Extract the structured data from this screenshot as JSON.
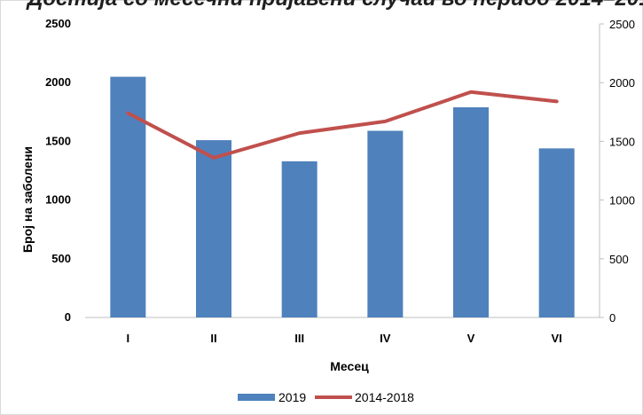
{
  "chart_data": {
    "type": "bar",
    "title": "",
    "title_visible_fragment": "...остј со ...ечи ...ра... ...ни ...и ...реди... ...о ... ...о...",
    "categories": [
      "I",
      "II",
      "III",
      "IV",
      "V",
      "VI"
    ],
    "series": [
      {
        "name": "2019",
        "type": "bar",
        "axis": "left",
        "color": "#4f81bd",
        "values": [
          2050,
          1510,
          1330,
          1590,
          1790,
          1440
        ]
      },
      {
        "name": "2014-2018",
        "type": "line",
        "axis": "right",
        "color": "#c0504d",
        "values": [
          1740,
          1360,
          1570,
          1670,
          1920,
          1840
        ]
      }
    ],
    "xlabel": "Месец",
    "ylabel": "Број на заболени",
    "ylim": [
      0,
      2500
    ],
    "y2lim": [
      0,
      2500
    ],
    "yticks": [
      "0",
      "500",
      "1000",
      "1500",
      "2000",
      "2500"
    ],
    "y2ticks": [
      "0",
      "500",
      "1000",
      "1500",
      "2000",
      "2500"
    ],
    "grid": false,
    "legend_position": "bottom"
  }
}
